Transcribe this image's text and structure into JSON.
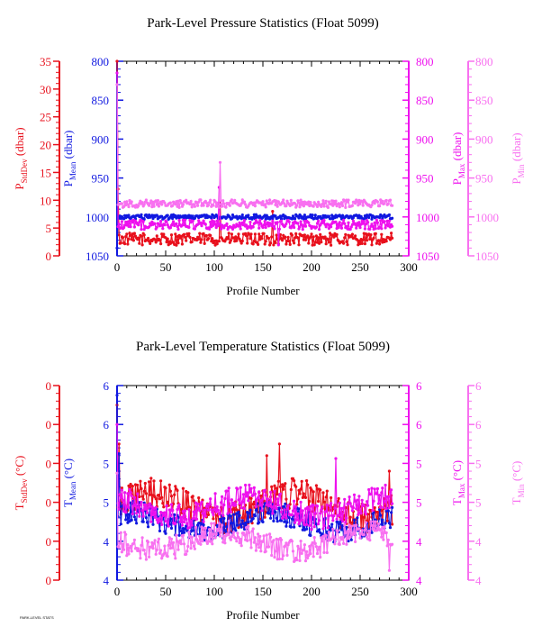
{
  "colors": {
    "stddev": "#e8101c",
    "mean": "#1018e0",
    "max": "#ee10ee",
    "min": "#f870f0",
    "axis": "#000000"
  },
  "footer_stamp": "PARK-LEVEL STATS",
  "chart_data": [
    {
      "type": "line",
      "title": "Park-Level Pressure Statistics (Float 5099)",
      "xlabel": "Profile Number",
      "xlim": [
        0,
        300
      ],
      "xticks": [
        0,
        50,
        100,
        150,
        200,
        250,
        300
      ],
      "axes": {
        "stddev": {
          "label_main": "P",
          "label_sub": "StdDev",
          "label_unit": " (dbar)",
          "lim": [
            0,
            35
          ],
          "ticks": [
            0,
            5,
            10,
            15,
            20,
            25,
            30,
            35
          ],
          "inverted": false
        },
        "mean": {
          "label_main": "P",
          "label_sub": "Mean",
          "label_unit": " (dbar)",
          "lim": [
            800,
            1050
          ],
          "ticks": [
            800,
            850,
            900,
            950,
            1000,
            1050
          ],
          "inverted": true
        },
        "max": {
          "label_main": "P",
          "label_sub": "Max",
          "label_unit": " (dbar)",
          "lim": [
            800,
            1050
          ],
          "ticks": [
            800,
            850,
            900,
            950,
            1000,
            1050
          ],
          "inverted": true
        },
        "min": {
          "label_main": "P",
          "label_sub": "Min",
          "label_unit": " (dbar)",
          "lim": [
            800,
            1050
          ],
          "ticks": [
            800,
            850,
            900,
            950,
            1000,
            1050
          ],
          "inverted": true
        }
      },
      "series": [
        {
          "name": "StdDev",
          "axis": "stddev",
          "base": 3.0,
          "noise": 1.1,
          "spikes": [
            [
              0,
              35
            ],
            [
              1,
              12
            ],
            [
              106,
              9.5
            ],
            [
              160,
              8
            ]
          ]
        },
        {
          "name": "Mean",
          "axis": "mean",
          "base": 1000,
          "noise": 3,
          "spikes": [
            [
              0,
              1040
            ],
            [
              1,
              1000
            ]
          ]
        },
        {
          "name": "Max",
          "axis": "max",
          "base": 1010,
          "noise": 6,
          "spikes": [
            [
              0,
              815
            ],
            [
              105,
              962
            ],
            [
              166,
              1036
            ]
          ]
        },
        {
          "name": "Min",
          "axis": "min",
          "base": 983,
          "noise": 5,
          "spikes": [
            [
              0,
              830
            ],
            [
              106,
              930
            ]
          ]
        }
      ]
    },
    {
      "type": "line",
      "title": "Park-Level Temperature Statistics (Float 5099)",
      "xlabel": "Profile Number",
      "xlim": [
        0,
        300
      ],
      "xticks": [
        0,
        50,
        100,
        150,
        200,
        250,
        300
      ],
      "axes": {
        "stddev": {
          "label_main": "T",
          "label_sub": "StdDev",
          "label_unit": " (°C)",
          "lim": [
            0,
            0.05
          ],
          "ticks": [
            "0",
            "0",
            "0",
            "0",
            "0",
            "0"
          ],
          "inverted": false
        },
        "mean": {
          "label_main": "T",
          "label_sub": "Mean",
          "label_unit": " (°C)",
          "lim": [
            4,
            6
          ],
          "ticks": [
            "4",
            "4",
            "5",
            "5",
            "6",
            "6"
          ],
          "inverted": false
        },
        "max": {
          "label_main": "T",
          "label_sub": "Max",
          "label_unit": " (°C)",
          "lim": [
            4,
            6
          ],
          "ticks": [
            "4",
            "4",
            "5",
            "5",
            "6",
            "6"
          ],
          "inverted": false
        },
        "min": {
          "label_main": "T",
          "label_sub": "Min",
          "label_unit": " (°C)",
          "lim": [
            4,
            6
          ],
          "ticks": [
            "4",
            "4",
            "5",
            "5",
            "6",
            "6"
          ],
          "inverted": false
        }
      },
      "series": [
        {
          "name": "StdDev",
          "axis": "stddev",
          "base": 0.019,
          "noise": 0.004,
          "spikes": [
            [
              0,
              0.045
            ],
            [
              2,
              0.035
            ],
            [
              154,
              0.032
            ],
            [
              167,
              0.035
            ],
            [
              280,
              0.028
            ]
          ]
        },
        {
          "name": "Mean",
          "axis": "mean",
          "base": 4.6,
          "noise": 0.12,
          "spikes": [
            [
              0,
              5.9
            ],
            [
              2,
              5.3
            ]
          ]
        },
        {
          "name": "Max",
          "axis": "max",
          "base": 4.75,
          "noise": 0.13,
          "spikes": [
            [
              0,
              5.6
            ],
            [
              225,
              5.25
            ]
          ]
        },
        {
          "name": "Min",
          "axis": "min",
          "base": 4.4,
          "noise": 0.12,
          "spikes": [
            [
              0,
              5.1
            ],
            [
              280,
              4.1
            ]
          ]
        }
      ]
    }
  ]
}
